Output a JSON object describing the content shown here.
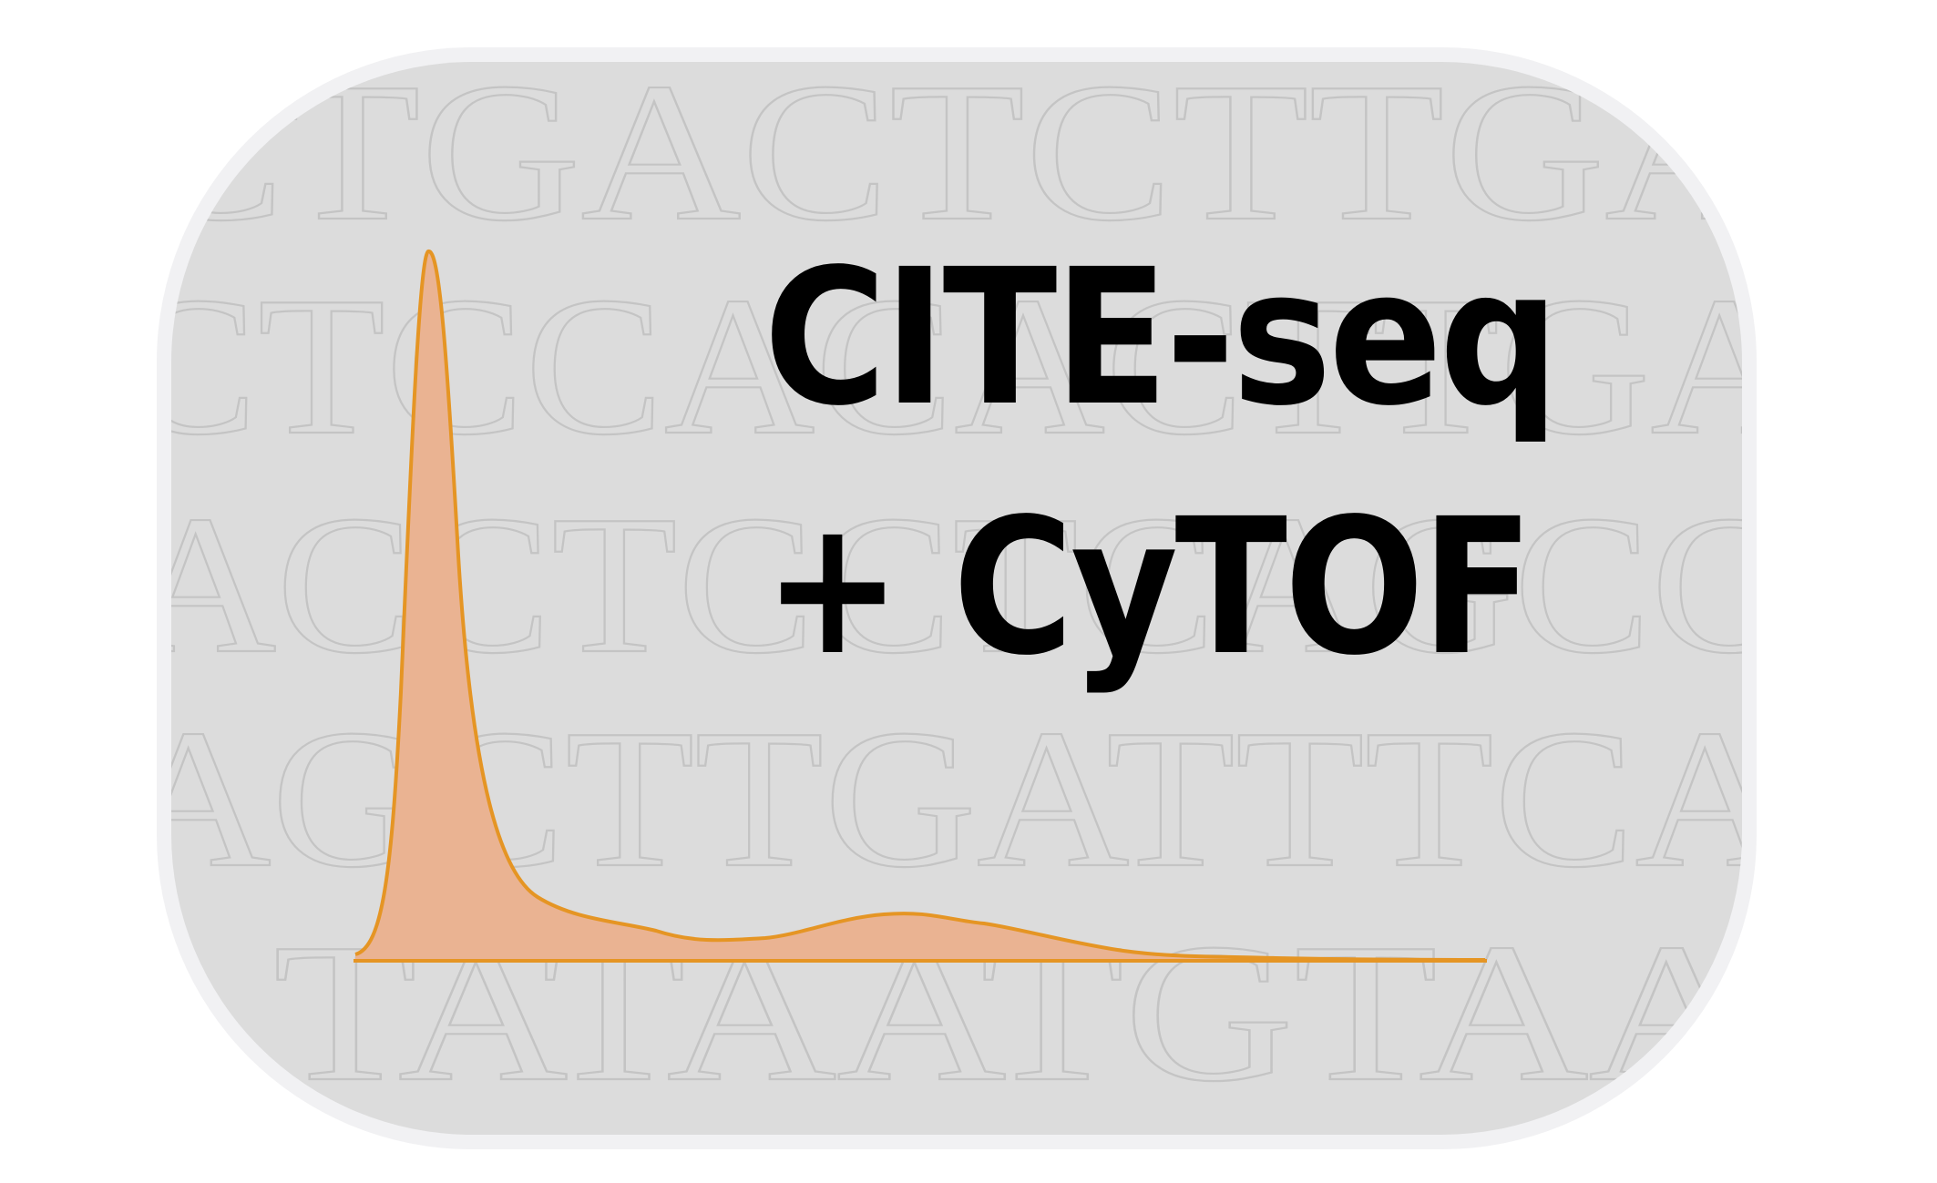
{
  "title": {
    "line1": "CITE-seq",
    "line2": "+ CyTOF"
  },
  "background_sequence": {
    "rows": [
      "CTGACTCTTGAC",
      "CTCCACACTTGAC",
      "ACCTCCTCAGCGCG",
      "AGCTTGATTTCAG",
      "TATAATGTAA"
    ]
  },
  "colors": {
    "panel_fill": "#dcdcdc",
    "panel_border": "#f1f1f3",
    "letters_stroke": "#c4c4c4",
    "density_fill": "#eab392",
    "density_stroke": "#e59524",
    "title_color": "#000000"
  },
  "icons": {
    "density-curve": "density plot with one tall peak and a low shoulder"
  }
}
